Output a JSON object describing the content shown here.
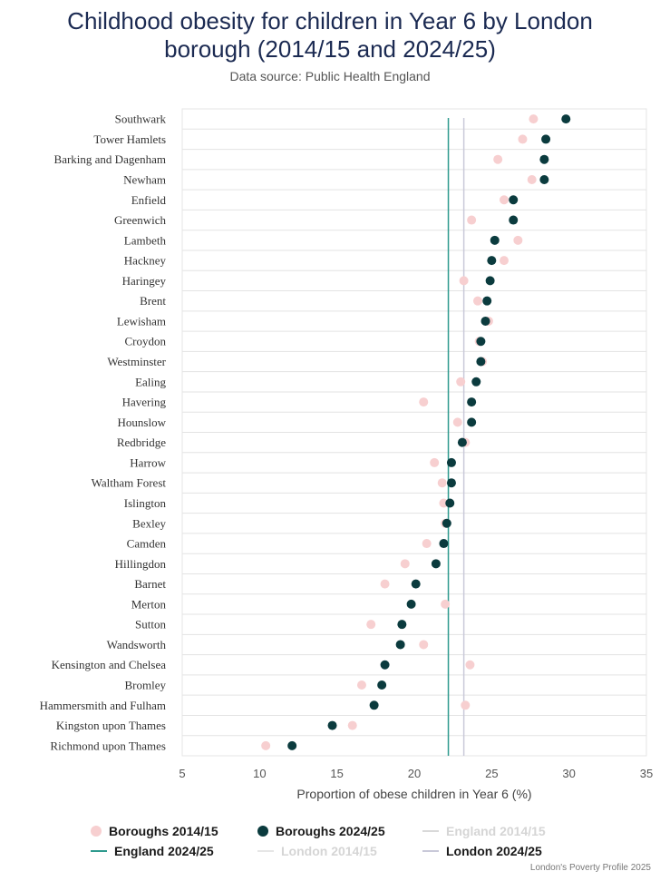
{
  "title_line1": "Childhood obesity for children in Year 6 by London",
  "title_line2": "borough (2014/15 and 2024/25)",
  "subtitle": "Data source: Public Health England",
  "footer": "London's Poverty Profile 2025",
  "colors": {
    "boroughs_2014": "#f7cfd0",
    "boroughs_2024": "#0b3b3e",
    "england_2014": "#d9d9d9",
    "england_2024": "#2e9a8e",
    "london_2014": "#e6e6e6",
    "london_2024": "#c9c9d9"
  },
  "legend": [
    {
      "label": "Boroughs 2014/15",
      "kind": "dot",
      "color": "#f7cfd0",
      "faded": false
    },
    {
      "label": "Boroughs 2024/25",
      "kind": "dot",
      "color": "#0b3b3e",
      "faded": false
    },
    {
      "label": "England 2014/15",
      "kind": "line",
      "color": "#d9d9d9",
      "faded": true
    },
    {
      "label": "England 2024/25",
      "kind": "line",
      "color": "#2e9a8e",
      "faded": false
    },
    {
      "label": "London 2014/15",
      "kind": "line",
      "color": "#e6e6e6",
      "faded": true
    },
    {
      "label": "London 2024/25",
      "kind": "line",
      "color": "#c9c9d9",
      "faded": false
    }
  ],
  "chart_data": {
    "type": "scatter",
    "xlabel": "Proportion of obese children in Year 6 (%)",
    "xlim": [
      5,
      35
    ],
    "xticks": [
      5,
      10,
      15,
      20,
      25,
      30,
      35
    ],
    "categories": [
      "Southwark",
      "Tower Hamlets",
      "Barking and Dagenham",
      "Newham",
      "Enfield",
      "Greenwich",
      "Lambeth",
      "Hackney",
      "Haringey",
      "Brent",
      "Lewisham",
      "Croydon",
      "Westminster",
      "Ealing",
      "Havering",
      "Hounslow",
      "Redbridge",
      "Harrow",
      "Waltham Forest",
      "Islington",
      "Bexley",
      "Camden",
      "Hillingdon",
      "Barnet",
      "Merton",
      "Sutton",
      "Wandsworth",
      "Kensington and Chelsea",
      "Bromley",
      "Hammersmith and Fulham",
      "Kingston upon Thames",
      "Richmond upon Thames"
    ],
    "series": [
      {
        "name": "Boroughs 2014/15",
        "values": [
          27.7,
          27.0,
          25.4,
          27.6,
          25.8,
          23.7,
          26.7,
          25.8,
          23.2,
          24.1,
          24.8,
          24.2,
          24.4,
          23.0,
          20.6,
          22.8,
          23.3,
          21.3,
          21.8,
          21.9,
          22.0,
          20.8,
          19.4,
          18.1,
          22.0,
          17.2,
          20.6,
          23.6,
          16.6,
          23.3,
          16.0,
          10.4
        ],
        "marker": "dot"
      },
      {
        "name": "Boroughs 2024/25",
        "values": [
          29.8,
          28.5,
          28.4,
          28.4,
          26.4,
          26.4,
          25.2,
          25.0,
          24.9,
          24.7,
          24.6,
          24.3,
          24.3,
          24.0,
          23.7,
          23.7,
          23.1,
          22.4,
          22.4,
          22.3,
          22.1,
          21.9,
          21.4,
          20.1,
          19.8,
          19.2,
          19.1,
          18.1,
          17.9,
          17.4,
          14.7,
          12.1
        ],
        "marker": "dot"
      },
      {
        "name": "England 2024/25",
        "values": [
          22.2
        ],
        "marker": "vline"
      },
      {
        "name": "London 2024/25",
        "values": [
          23.2
        ],
        "marker": "vline"
      }
    ],
    "grid": true
  }
}
